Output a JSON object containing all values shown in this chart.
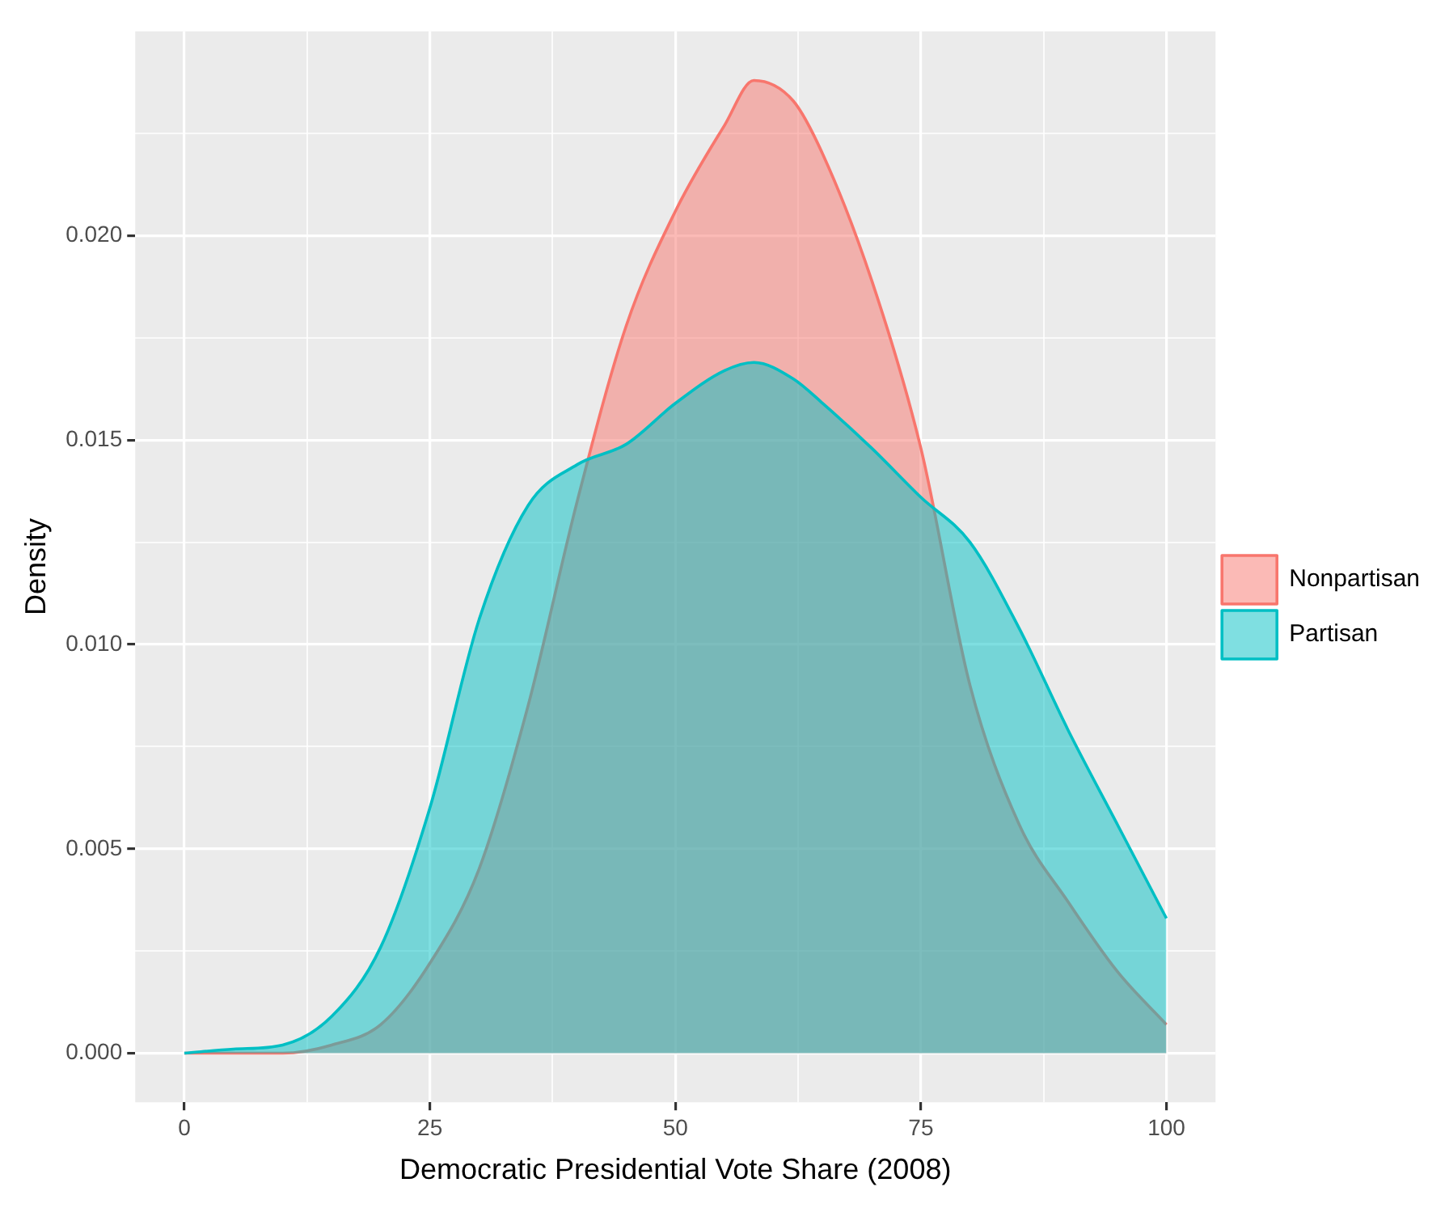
{
  "chart_data": {
    "type": "area",
    "xlabel": "Democratic Presidential Vote Share (2008)",
    "ylabel": "Density",
    "xlim": [
      -5,
      105
    ],
    "ylim": [
      -0.0012,
      0.025
    ],
    "xticks": [
      0,
      {
        "value": 12.5,
        "label": null
      },
      25,
      {
        "value": 37.5,
        "label": null
      },
      50,
      {
        "value": 62.5,
        "label": null
      },
      75,
      {
        "value": 87.5,
        "label": null
      },
      100
    ],
    "yticks": [
      {
        "value": 0,
        "label": "0.000"
      },
      {
        "value": 0.0025,
        "label": null
      },
      {
        "value": 0.005,
        "label": "0.005"
      },
      {
        "value": 0.0075,
        "label": null
      },
      {
        "value": 0.01,
        "label": "0.010"
      },
      {
        "value": 0.0125,
        "label": null
      },
      {
        "value": 0.015,
        "label": "0.015"
      },
      {
        "value": 0.0175,
        "label": null
      },
      {
        "value": 0.02,
        "label": "0.020"
      },
      {
        "value": 0.0225,
        "label": null
      }
    ],
    "grid": true,
    "legend": "right",
    "series": [
      {
        "name": "Nonpartisan",
        "color": "#f8766d",
        "x": [
          0,
          5,
          10,
          15,
          20,
          25,
          30,
          35,
          40,
          45,
          50,
          55,
          58,
          62,
          65,
          70,
          75,
          80,
          85,
          90,
          95,
          100
        ],
        "values": [
          0,
          0,
          0,
          0.0002,
          0.0007,
          0.0022,
          0.0045,
          0.0085,
          0.0135,
          0.0178,
          0.0206,
          0.0227,
          0.0238,
          0.0233,
          0.022,
          0.0189,
          0.0148,
          0.009,
          0.0056,
          0.0037,
          0.002,
          0.0007
        ]
      },
      {
        "name": "Partisan",
        "color": "#00bfc4",
        "x": [
          0,
          5,
          10,
          15,
          20,
          25,
          30,
          35,
          40,
          45,
          50,
          55,
          58,
          62,
          65,
          70,
          75,
          80,
          85,
          90,
          95,
          100
        ],
        "values": [
          0,
          0.0001,
          0.0002,
          0.0009,
          0.0026,
          0.006,
          0.0106,
          0.0134,
          0.0144,
          0.0149,
          0.0159,
          0.0167,
          0.0169,
          0.0165,
          0.0159,
          0.0148,
          0.0136,
          0.0125,
          0.0104,
          0.0079,
          0.0056,
          0.0033
        ]
      }
    ]
  }
}
